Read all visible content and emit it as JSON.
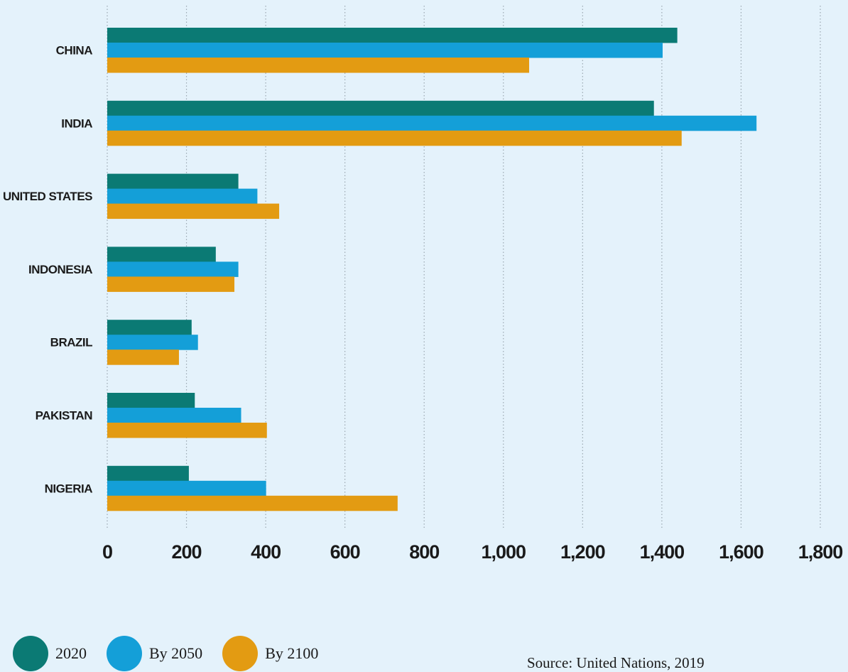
{
  "colors": {
    "background": "#e4f2fb",
    "series_2020": "#0b7a74",
    "series_2050": "#149fd8",
    "series_2100": "#e39b12",
    "grid": "#9aa7b0",
    "text": "#1a1a1a"
  },
  "chart_data": {
    "type": "bar",
    "orientation": "horizontal",
    "title": "",
    "xlabel": "",
    "ylabel": "",
    "categories": [
      "CHINA",
      "INDIA",
      "UNITED STATES",
      "INDONESIA",
      "BRAZIL",
      "PAKISTAN",
      "NIGERIA"
    ],
    "series": [
      {
        "name": "2020",
        "values": [
          1439,
          1380,
          331,
          274,
          213,
          221,
          206
        ]
      },
      {
        "name": "By 2050",
        "values": [
          1402,
          1639,
          379,
          331,
          229,
          338,
          401
        ]
      },
      {
        "name": "By 2100",
        "values": [
          1065,
          1450,
          434,
          321,
          181,
          403,
          733
        ]
      }
    ],
    "xlim": [
      0,
      1800
    ],
    "x_ticks": [
      0,
      200,
      400,
      600,
      800,
      1000,
      1200,
      1400,
      1600,
      1800
    ],
    "x_tick_labels": [
      "0",
      "200",
      "400",
      "600",
      "800",
      "1,000",
      "1,200",
      "1,400",
      "1,600",
      "1,800"
    ],
    "grid": "vertical dotted",
    "legend_placement": "bottom-left"
  },
  "legend": {
    "items": [
      {
        "label": "2020"
      },
      {
        "label": "By 2050"
      },
      {
        "label": "By 2100"
      }
    ]
  },
  "source": "Source: United Nations, 2019"
}
